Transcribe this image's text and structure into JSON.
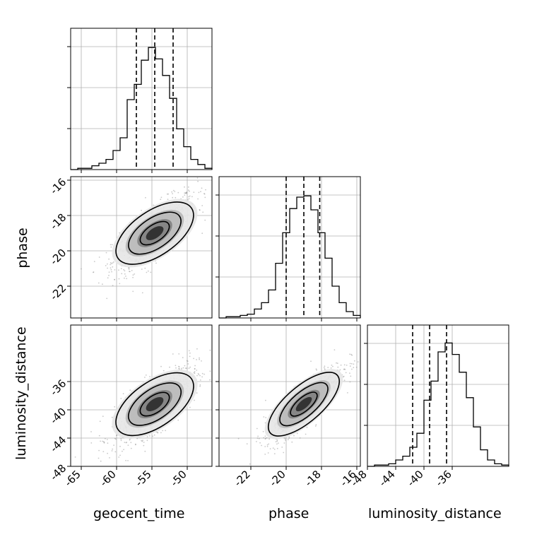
{
  "chart_data": {
    "type": "corner",
    "parameters": [
      "geocent_time",
      "phase",
      "luminosity_distance"
    ],
    "axis_labels": {
      "x": [
        "geocent_time",
        "phase",
        "luminosity_distance"
      ],
      "y": [
        "phase",
        "luminosity_distance"
      ]
    },
    "ranges": {
      "geocent_time": [
        -66.5,
        -46.5
      ],
      "phase": [
        -23.8,
        -15.8
      ],
      "luminosity_distance": [
        -48,
        -28
      ]
    },
    "ticks": {
      "geocent_time": [
        "-65",
        "-60",
        "-55",
        "-50"
      ],
      "phase": [
        "-22",
        "-20",
        "-18",
        "-16"
      ],
      "luminosity_distance": [
        "-48",
        "-44",
        "-40",
        "-36"
      ]
    },
    "quantiles": {
      "geocent_time": [
        -57.2,
        -54.6,
        -52.0
      ],
      "phase": [
        -20.0,
        -19.0,
        -18.1
      ],
      "luminosity_distance": [
        -41.6,
        -39.2,
        -36.8
      ]
    },
    "histograms": {
      "geocent_time": [
        0,
        1,
        1,
        3,
        5,
        8,
        15,
        25,
        55,
        67,
        86,
        96,
        87,
        74,
        56,
        32,
        18,
        8,
        4,
        1
      ],
      "phase": [
        0,
        1,
        1,
        2,
        3,
        7,
        12,
        22,
        43,
        67,
        86,
        95,
        96,
        85,
        67,
        47,
        25,
        12,
        5,
        2
      ],
      "luminosity_distance": [
        0,
        1,
        1,
        2,
        5,
        8,
        15,
        26,
        52,
        67,
        90,
        97,
        88,
        74,
        54,
        31,
        13,
        5,
        2,
        1
      ]
    },
    "correlations": {
      "phase|geocent_time": 0.75,
      "luminosity_distance|geocent_time": 0.75,
      "luminosity_distance|phase": 0.85
    },
    "grid": true
  }
}
